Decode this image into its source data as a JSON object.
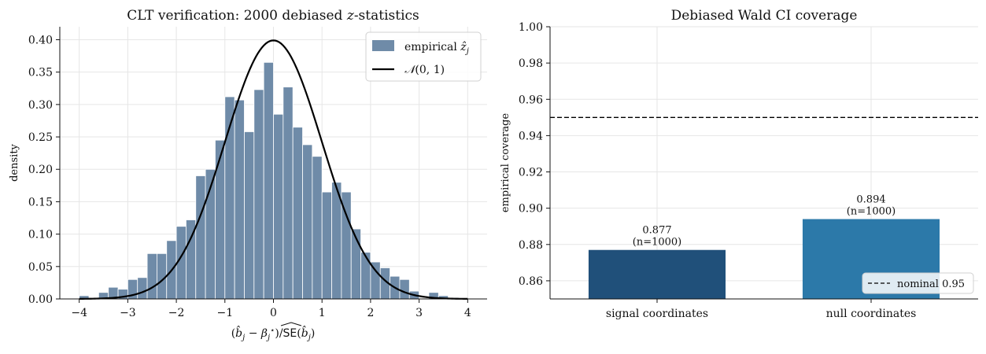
{
  "chart_data": [
    {
      "type": "bar",
      "subtype": "histogram",
      "title": "CLT verification: 2000 debiased z-statistics",
      "title_parts": [
        "CLT verification: 2000 debiased ",
        "z",
        "-statistics"
      ],
      "xlabel": "(b̂_j − β_j*) / SE(b̂_j)",
      "ylabel": "density",
      "xlim": [
        -4.4,
        4.4
      ],
      "ylim": [
        0,
        0.42
      ],
      "xticks": [
        -4,
        -3,
        -2,
        -1,
        0,
        1,
        2,
        3,
        4
      ],
      "xtick_labels": [
        "−4",
        "−3",
        "−2",
        "−1",
        "0",
        "1",
        "2",
        "3",
        "4"
      ],
      "yticks": [
        0,
        0.05,
        0.1,
        0.15,
        0.2,
        0.25,
        0.3,
        0.35,
        0.4
      ],
      "ytick_labels": [
        "0.00",
        "0.05",
        "0.10",
        "0.15",
        "0.20",
        "0.25",
        "0.30",
        "0.35",
        "0.40"
      ],
      "grid": true,
      "legend_position": "top-right",
      "bins": {
        "start": -4.0,
        "width": 0.2,
        "values": [
          0.005,
          0.0,
          0.01,
          0.018,
          0.015,
          0.03,
          0.033,
          0.07,
          0.07,
          0.09,
          0.112,
          0.122,
          0.19,
          0.2,
          0.245,
          0.312,
          0.307,
          0.258,
          0.323,
          0.365,
          0.285,
          0.327,
          0.265,
          0.238,
          0.22,
          0.165,
          0.18,
          0.165,
          0.108,
          0.072,
          0.057,
          0.048,
          0.035,
          0.03,
          0.012,
          0.0,
          0.01,
          0.005,
          0.002,
          0.0
        ],
        "color": "#6f8ba8",
        "edgecolor": "#ffffff"
      },
      "series": [
        {
          "name": "empirical ẑ_j",
          "kind": "histogram",
          "color": "#6f8ba8"
        },
        {
          "name": "𝒩(0, 1)",
          "kind": "line",
          "function": "standard normal pdf",
          "x_range": [
            -4,
            4
          ],
          "color": "#000000"
        }
      ]
    },
    {
      "type": "bar",
      "title": "Debiased Wald CI coverage",
      "categories": [
        "signal coordinates",
        "null coordinates"
      ],
      "values": [
        0.877,
        0.894
      ],
      "data_labels": [
        {
          "value": "0.877",
          "n": "(n=1000)"
        },
        {
          "value": "0.894",
          "n": "(n=1000)"
        }
      ],
      "colors": [
        "#20507a",
        "#2c79a9"
      ],
      "xlabel": "",
      "ylabel": "empirical coverage",
      "ylim": [
        0.85,
        1.0
      ],
      "yticks": [
        0.86,
        0.88,
        0.9,
        0.92,
        0.94,
        0.96,
        0.98,
        1.0
      ],
      "ytick_labels": [
        "0.86",
        "0.88",
        "0.90",
        "0.92",
        "0.94",
        "0.96",
        "0.98",
        "1.00"
      ],
      "reference_line": {
        "y": 0.95,
        "label": "nominal 0.95",
        "style": "dashed",
        "color": "#000000"
      },
      "grid": true,
      "legend_position": "bottom-right"
    }
  ]
}
